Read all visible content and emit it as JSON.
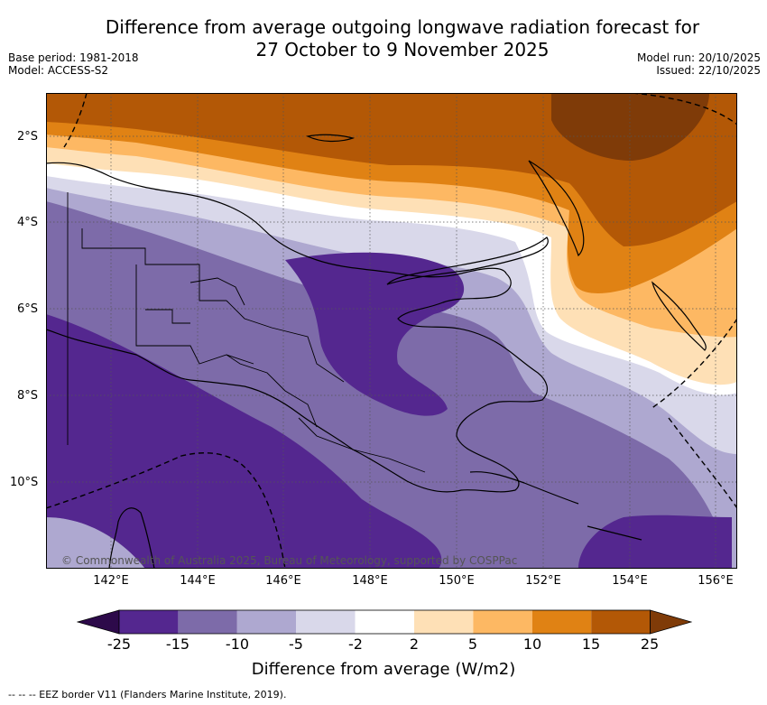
{
  "title_line1": "Difference from average outgoing longwave radiation forecast for",
  "title_line2": "27 October to 9 November 2025",
  "base_period": "Base period: 1981-2018",
  "model": "Model: ACCESS-S2",
  "model_run": "Model run: 20/10/2025",
  "issued": "Issued: 22/10/2025",
  "lat_labels": [
    "2°S",
    "4°S",
    "6°S",
    "8°S",
    "10°S"
  ],
  "lon_labels": [
    "142°E",
    "144°E",
    "146°E",
    "148°E",
    "150°E",
    "152°E",
    "154°E",
    "156°E"
  ],
  "copyright": "© Commonwealth of Australia 2025, Bureau of Meteorology, supported by COSPPac",
  "colorbar": {
    "title": "Difference from average (W/m2)",
    "labels": [
      "-25",
      "-15",
      "-10",
      "-5",
      "-2",
      "2",
      "5",
      "10",
      "15",
      "25"
    ],
    "colors": [
      "#2d0a4a",
      "#54278f",
      "#7d6ba9",
      "#aea8d0",
      "#d9d8ea",
      "#ffffff",
      "#fee0b6",
      "#fdb863",
      "#e08214",
      "#b35806",
      "#7f3b08"
    ]
  },
  "footnote": "--  --  -- EEZ border V11 (Flanders Marine Institute, 2019)."
}
